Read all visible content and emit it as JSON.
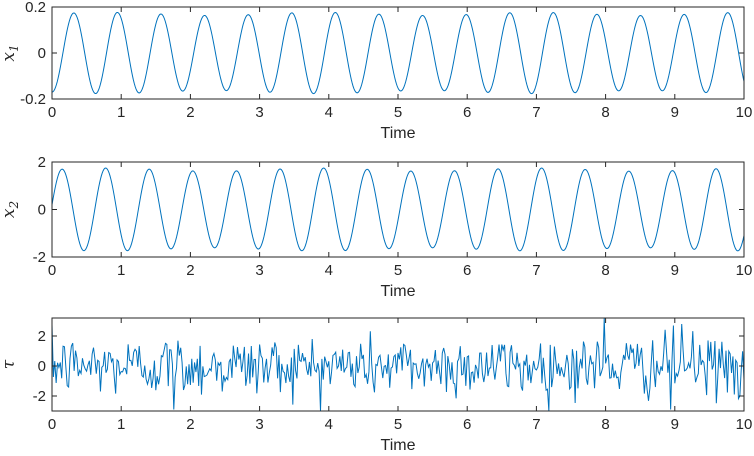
{
  "colors": {
    "series": "#0072BD",
    "axis": "#262626",
    "background": "#ffffff"
  },
  "chart_data": [
    {
      "type": "line",
      "ylabel": "x",
      "ylabel_subscript": "1",
      "xlabel": "Time",
      "xlim": [
        0,
        10
      ],
      "ylim": [
        -0.2,
        0.2
      ],
      "xticks": [
        "0",
        "1",
        "2",
        "3",
        "4",
        "5",
        "6",
        "7",
        "8",
        "9",
        "10"
      ],
      "yticks": [
        "0.2",
        "0",
        "-0.2"
      ],
      "yticks_values": [
        0.2,
        0,
        -0.2
      ],
      "grid": false,
      "series": [
        {
          "kind": "sine",
          "amplitude": 0.17,
          "period": 0.63,
          "phase_value_at_0": -0.17,
          "samples": 800
        }
      ]
    },
    {
      "type": "line",
      "ylabel": "x",
      "ylabel_subscript": "2",
      "xlabel": "Time",
      "xlim": [
        0,
        10
      ],
      "ylim": [
        -2,
        2
      ],
      "xticks": [
        "0",
        "1",
        "2",
        "3",
        "4",
        "5",
        "6",
        "7",
        "8",
        "9",
        "10"
      ],
      "yticks": [
        "2",
        "0",
        "-2"
      ],
      "yticks_values": [
        2,
        0,
        -2
      ],
      "grid": false,
      "series": [
        {
          "kind": "sine",
          "amplitude": 1.68,
          "period": 0.63,
          "phase_value_at_0": 0.2,
          "samples": 800
        }
      ]
    },
    {
      "type": "line",
      "ylabel": "τ",
      "ylabel_subscript": "",
      "xlabel": "Time",
      "xlim": [
        0,
        10
      ],
      "ylim": [
        -3,
        3.2
      ],
      "xticks": [
        "0",
        "1",
        "2",
        "3",
        "4",
        "5",
        "6",
        "7",
        "8",
        "9",
        "10"
      ],
      "yticks": [
        "2",
        "0",
        "-2"
      ],
      "yticks_values": [
        2,
        0,
        -2
      ],
      "grid": false,
      "series": [
        {
          "kind": "noise",
          "std": 1.0,
          "samples": 500,
          "notable_points": [
            [
              7.98,
              3.2
            ],
            [
              1.75,
              -2.9
            ],
            [
              8.95,
              -2.9
            ],
            [
              8.98,
              2.7
            ],
            [
              9.1,
              2.8
            ],
            [
              9.95,
              -2.0
            ]
          ]
        }
      ]
    }
  ]
}
